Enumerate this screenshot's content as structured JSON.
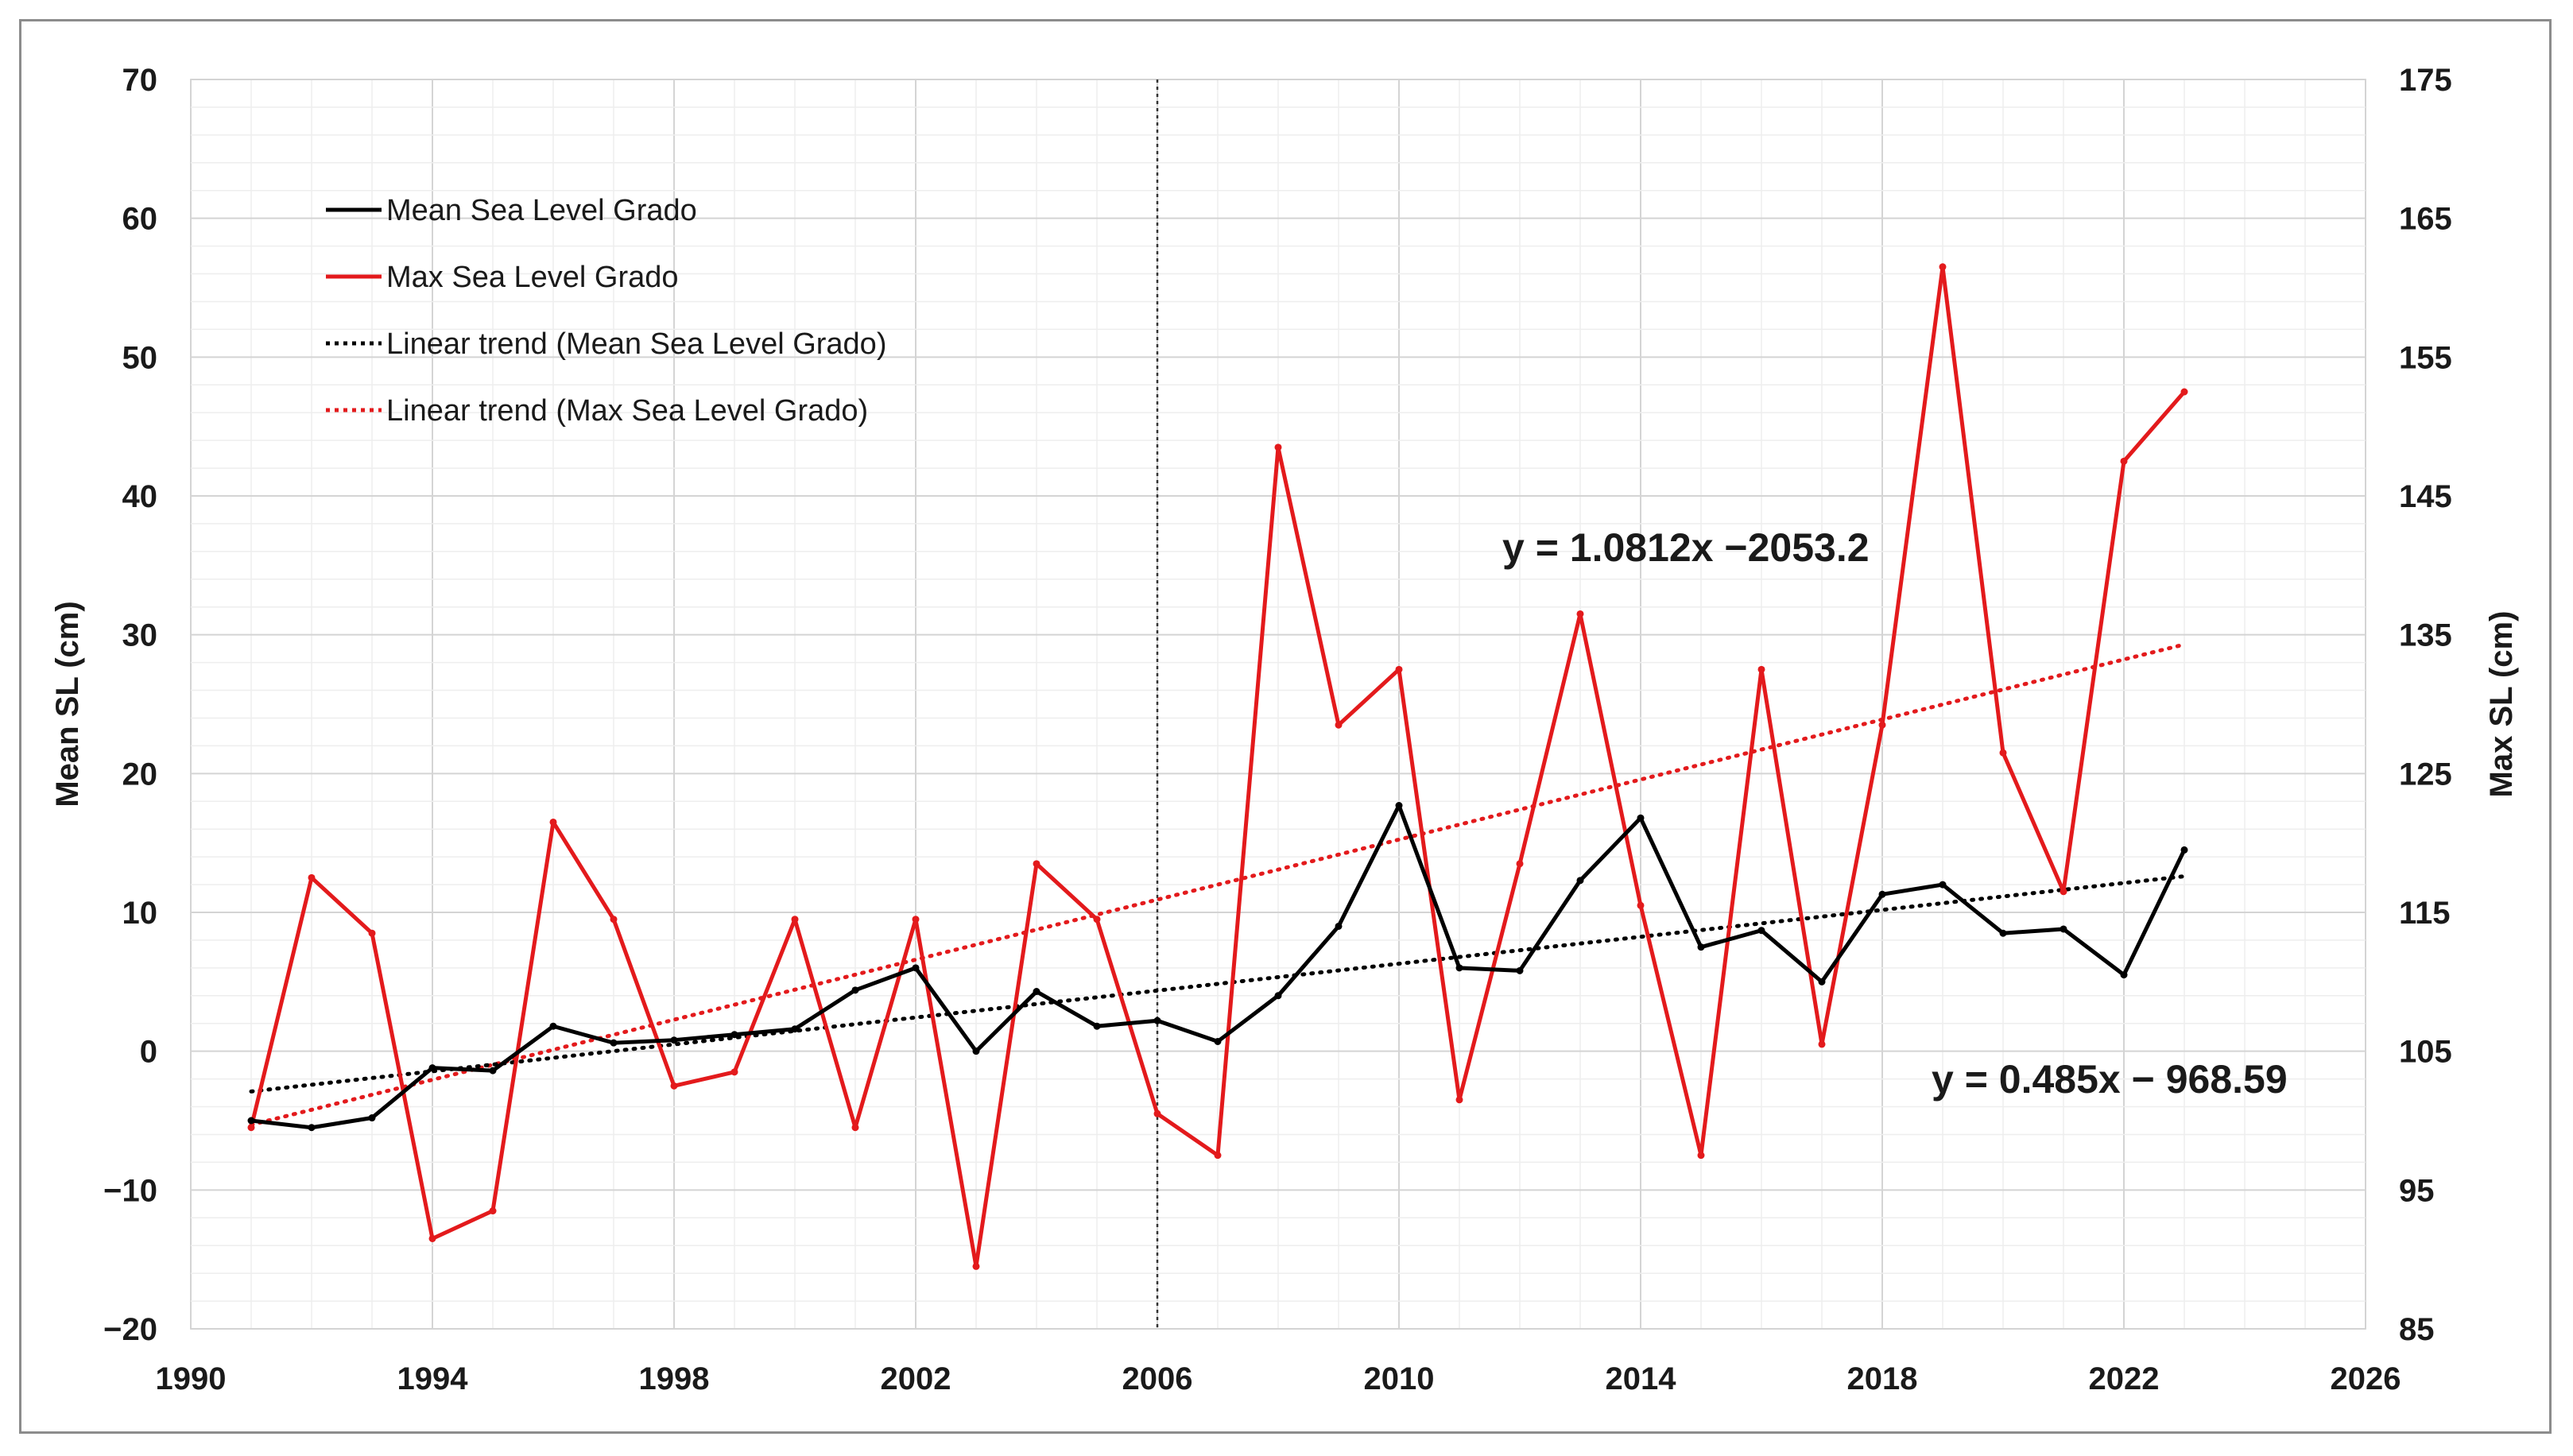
{
  "chart_data": {
    "type": "line",
    "xlim": [
      1990,
      2026
    ],
    "x_ticks": [
      "1990",
      "1994",
      "1998",
      "2002",
      "2006",
      "2010",
      "2014",
      "2018",
      "2022",
      "2026"
    ],
    "y_left": {
      "label": "Mean SL (cm)",
      "ylim": [
        -20,
        70
      ],
      "ticks": [
        "70",
        "60",
        "50",
        "40",
        "30",
        "20",
        "10",
        "0",
        "−10",
        "−20"
      ]
    },
    "y_right": {
      "label": "Max SL (cm)",
      "ylim": [
        85,
        175
      ],
      "ticks": [
        "175",
        "165",
        "155",
        "145",
        "135",
        "125",
        "115",
        "105",
        "95",
        "85"
      ]
    },
    "vertical_marker_year": 2006,
    "grid": true,
    "legend": {
      "placement": "top-left",
      "entries": [
        {
          "label": "Mean Sea Level Grado",
          "color": "#000000",
          "style": "solid"
        },
        {
          "label": "Max Sea Level Grado",
          "color": "#e31a1c",
          "style": "solid"
        },
        {
          "label": "Linear trend (Mean Sea Level Grado)",
          "color": "#000000",
          "style": "dotted"
        },
        {
          "label": "Linear trend (Max Sea Level Grado)",
          "color": "#e31a1c",
          "style": "dotted"
        }
      ]
    },
    "series": [
      {
        "name": "Mean Sea Level Grado",
        "axis": "left",
        "color": "#000000",
        "x": [
          1991,
          1992,
          1993,
          1994,
          1995,
          1996,
          1997,
          1998,
          1999,
          2000,
          2001,
          2002,
          2003,
          2004,
          2005,
          2006,
          2007,
          2008,
          2009,
          2010,
          2011,
          2012,
          2013,
          2014,
          2015,
          2016,
          2017,
          2018,
          2019,
          2020,
          2021,
          2022,
          2023
        ],
        "values": [
          -5.0,
          -5.5,
          -4.8,
          -1.2,
          -1.4,
          1.8,
          0.6,
          0.8,
          1.2,
          1.6,
          4.4,
          6.0,
          0.0,
          4.3,
          1.8,
          2.2,
          0.7,
          4.0,
          9.0,
          17.7,
          6.0,
          5.8,
          12.3,
          16.8,
          7.5,
          8.7,
          5.0,
          11.3,
          12.0,
          8.5,
          8.8,
          5.5,
          14.5
        ]
      },
      {
        "name": "Max Sea Level Grado",
        "axis": "right",
        "color": "#e31a1c",
        "x": [
          1991,
          1992,
          1993,
          1994,
          1995,
          1996,
          1997,
          1998,
          1999,
          2000,
          2001,
          2002,
          2003,
          2004,
          2005,
          2006,
          2007,
          2008,
          2009,
          2010,
          2011,
          2012,
          2013,
          2014,
          2015,
          2016,
          2017,
          2018,
          2019,
          2020,
          2021,
          2022,
          2023
        ],
        "values": [
          99.5,
          117.5,
          113.5,
          91.5,
          93.5,
          121.5,
          114.5,
          102.5,
          103.5,
          114.5,
          99.5,
          114.5,
          89.5,
          118.5,
          114.5,
          100.5,
          97.5,
          148.5,
          128.5,
          132.5,
          101.5,
          118.5,
          136.5,
          115.5,
          97.5,
          132.5,
          105.5,
          128.5,
          161.5,
          126.5,
          116.5,
          147.5,
          152.5
        ]
      },
      {
        "name": "Linear trend (Mean Sea Level Grado)",
        "axis": "left",
        "color": "#000000",
        "style": "dotted",
        "x": [
          1991,
          2023
        ],
        "values": [
          -2.9,
          12.6
        ]
      },
      {
        "name": "Linear trend (Max Sea Level Grado)",
        "axis": "right",
        "color": "#e31a1c",
        "style": "dotted",
        "x": [
          1991,
          2023
        ],
        "values": [
          99.7,
          134.3
        ]
      }
    ],
    "annotations": [
      {
        "text": "y = 1.0812x −2053.2"
      },
      {
        "text": "y = 0.485x − 968.59"
      }
    ]
  }
}
